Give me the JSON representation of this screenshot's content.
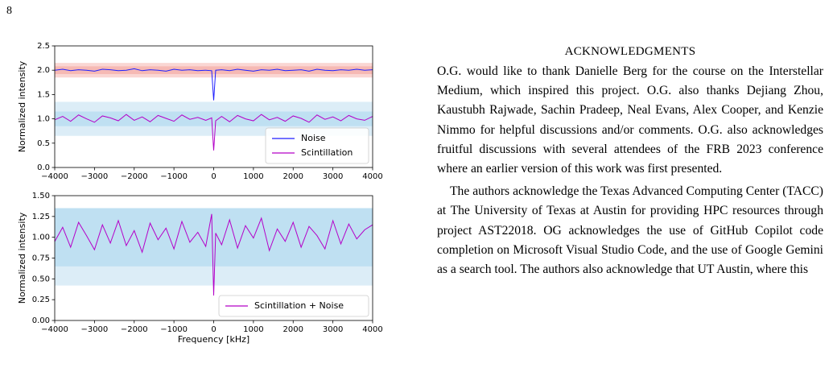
{
  "page_number": "8",
  "chart_data": [
    {
      "type": "line",
      "ylabel": "Normalized intensity",
      "x": [
        -4000,
        -3800,
        -3600,
        -3400,
        -3200,
        -3000,
        -2800,
        -2600,
        -2400,
        -2200,
        -2000,
        -1800,
        -1600,
        -1400,
        -1200,
        -1000,
        -800,
        -600,
        -400,
        -200,
        -50,
        0,
        50,
        200,
        400,
        600,
        800,
        1000,
        1200,
        1400,
        1600,
        1800,
        2000,
        2200,
        2400,
        2600,
        2800,
        3000,
        3200,
        3400,
        3600,
        3800,
        4000
      ],
      "series": [
        {
          "name": "Noise",
          "color": "#1f1fff",
          "values": [
            2.0,
            2.02,
            1.99,
            2.01,
            2.0,
            1.98,
            2.02,
            2.01,
            1.99,
            2.0,
            2.03,
            1.99,
            2.01,
            2.0,
            1.98,
            2.02,
            2.0,
            2.01,
            1.99,
            2.0,
            1.99,
            1.38,
            2.0,
            2.01,
            1.99,
            2.02,
            2.0,
            1.98,
            2.01,
            2.0,
            2.02,
            1.99,
            2.0,
            2.01,
            1.98,
            2.02,
            2.0,
            1.99,
            2.01,
            2.0,
            2.02,
            2.0,
            2.01
          ]
        },
        {
          "name": "Scintillation",
          "color": "#b400c8",
          "values": [
            0.98,
            1.05,
            0.95,
            1.08,
            1.0,
            0.93,
            1.06,
            1.02,
            0.96,
            1.09,
            0.97,
            1.04,
            0.94,
            1.07,
            1.01,
            0.95,
            1.08,
            0.99,
            1.03,
            0.97,
            1.02,
            0.35,
            0.96,
            1.05,
            0.94,
            1.07,
            1.0,
            0.96,
            1.09,
            0.98,
            1.03,
            0.95,
            1.06,
            1.01,
            0.93,
            1.08,
            0.99,
            1.04,
            0.96,
            1.07,
            1.0,
            0.97,
            1.05
          ]
        }
      ],
      "bands": [
        {
          "from": 1.85,
          "to": 2.15,
          "color": "#fad6d3"
        },
        {
          "from": 1.92,
          "to": 2.08,
          "color": "#f6b9b4"
        },
        {
          "from": 0.65,
          "to": 1.35,
          "color": "#dcedf7"
        },
        {
          "from": 0.85,
          "to": 1.15,
          "color": "#bfe0f2"
        }
      ],
      "xlim": [
        -4000,
        4000
      ],
      "xticks": [
        {
          "value": -4000,
          "label": "−4000"
        },
        {
          "value": -3000,
          "label": "−3000"
        },
        {
          "value": -2000,
          "label": "−2000"
        },
        {
          "value": -1000,
          "label": "−1000"
        },
        0,
        1000,
        2000,
        3000,
        4000
      ],
      "ylim": [
        0,
        2.5
      ],
      "yticks": [
        {
          "value": 0,
          "label": "0.0"
        },
        0.5,
        {
          "value": 1,
          "label": "1.0"
        },
        1.5,
        {
          "value": 2,
          "label": "2.0"
        },
        2.5
      ],
      "legend": "lower right"
    },
    {
      "type": "line",
      "ylabel": "Normalized intensity",
      "xlabel": "Frequency [kHz]",
      "x": [
        -4000,
        -3800,
        -3600,
        -3400,
        -3200,
        -3000,
        -2800,
        -2600,
        -2400,
        -2200,
        -2000,
        -1800,
        -1600,
        -1400,
        -1200,
        -1000,
        -800,
        -600,
        -400,
        -200,
        -50,
        0,
        50,
        200,
        400,
        600,
        800,
        1000,
        1200,
        1400,
        1600,
        1800,
        2000,
        2200,
        2400,
        2600,
        2800,
        3000,
        3200,
        3400,
        3600,
        3800,
        4000
      ],
      "series": [
        {
          "name": "Scintillation + Noise",
          "color": "#b400c8",
          "values": [
            0.95,
            1.12,
            0.88,
            1.18,
            1.02,
            0.85,
            1.15,
            0.93,
            1.2,
            0.9,
            1.08,
            0.82,
            1.17,
            0.97,
            1.11,
            0.86,
            1.19,
            0.94,
            1.06,
            0.89,
            1.28,
            0.3,
            1.05,
            0.91,
            1.21,
            0.87,
            1.14,
            0.99,
            1.23,
            0.84,
            1.1,
            0.95,
            1.18,
            0.88,
            1.13,
            1.02,
            0.86,
            1.2,
            0.92,
            1.16,
            0.98,
            1.09,
            1.15
          ]
        }
      ],
      "bands": [
        {
          "from": 0.42,
          "to": 1.35,
          "color": "#dcedf7"
        },
        {
          "from": 0.65,
          "to": 1.35,
          "color": "#bfe0f2"
        }
      ],
      "xlim": [
        -4000,
        4000
      ],
      "xticks": [
        {
          "value": -4000,
          "label": "−4000"
        },
        {
          "value": -3000,
          "label": "−3000"
        },
        {
          "value": -2000,
          "label": "−2000"
        },
        {
          "value": -1000,
          "label": "−1000"
        },
        0,
        1000,
        2000,
        3000,
        4000
      ],
      "ylim": [
        0,
        1.5
      ],
      "yticks": [
        {
          "value": 0,
          "label": "0.00"
        },
        0.25,
        {
          "value": 0.5,
          "label": "0.50"
        },
        0.75,
        {
          "value": 1,
          "label": "1.00"
        },
        {
          "value": 1.25,
          "label": "1.25"
        },
        {
          "value": 1.5,
          "label": "1.50"
        }
      ],
      "legend": "lower right"
    }
  ],
  "acknowledgments": {
    "heading": "ACKNOWLEDGMENTS",
    "paragraphs": [
      "O.G. would like to thank Danielle Berg for the course on the Interstellar Medium, which inspired this project. O.G. also thanks Dejiang Zhou, Kaustubh Rajwade, Sachin Pradeep, Neal Evans, Alex Cooper, and Kenzie Nimmo for helpful discussions and/or comments. O.G. also acknowledges fruitful discussions with several attendees of the FRB 2023 conference where an earlier version of this work was first presented.",
      "The authors acknowledge the Texas Advanced Computing Center (TACC) at The University of Texas at Austin for providing HPC resources through project AST22018. OG acknowledges the use of GitHub Copilot code completion on Microsoft Visual Studio Code, and the use of Google Gemini as a search tool. The authors also acknowledge that UT Austin, where this"
    ]
  }
}
